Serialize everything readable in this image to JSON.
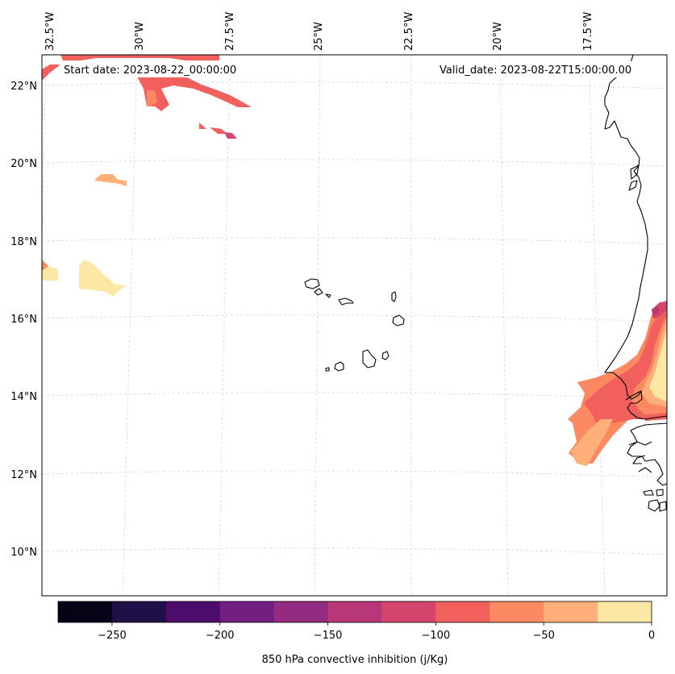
{
  "map": {
    "start_date": "Start date: 2023-08-22_00:00:00",
    "valid_date": "Valid_date: 2023-08-22T15:00:00.00",
    "lon_labels": [
      "32.5°W",
      "30°W",
      "27.5°W",
      "25°W",
      "22.5°W",
      "20°W",
      "17.5°W"
    ],
    "lat_labels": [
      "22°N",
      "20°N",
      "18°N",
      "16°N",
      "14°N",
      "12°N",
      "10°N"
    ],
    "extent": {
      "lon_min": -33.0,
      "lon_max": -16.0,
      "lat_min": 9.0,
      "lat_max": 22.7
    }
  },
  "colorbar": {
    "label": "850 hPa convective inhibition (j/Kg)",
    "ticks": [
      "−250",
      "−200",
      "−150",
      "−100",
      "−50",
      "0"
    ],
    "levels": [
      -275,
      -250,
      -225,
      -200,
      -175,
      -150,
      -125,
      -100,
      -75,
      -50,
      -25,
      0
    ],
    "colors": [
      "#050416",
      "#1f1147",
      "#4b0c6b",
      "#721f81",
      "#932b80",
      "#b73779",
      "#d6456c",
      "#f1605d",
      "#fc8961",
      "#feb078",
      "#fde7a5"
    ]
  }
}
